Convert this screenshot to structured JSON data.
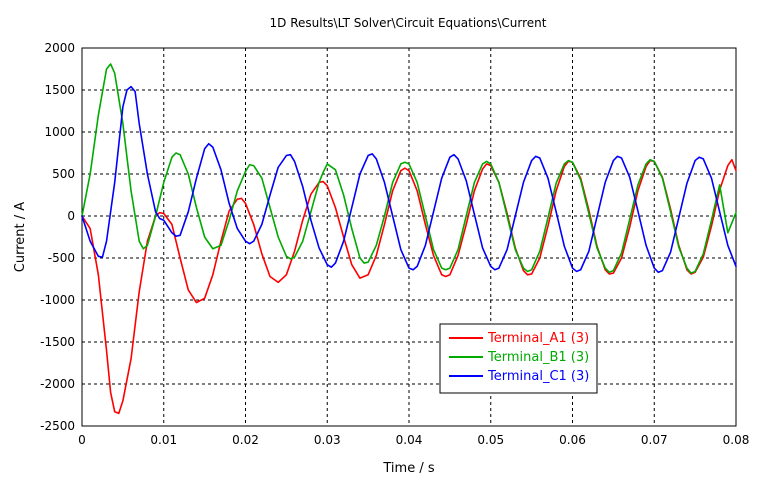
{
  "chart_data": {
    "type": "line",
    "title": "1D Results\\LT Solver\\Circuit Equations\\Current",
    "xlabel": "Time / s",
    "ylabel": "Current / A",
    "xlim": [
      0,
      0.08
    ],
    "ylim": [
      -2500,
      2000
    ],
    "x_ticks": [
      0,
      0.01,
      0.02,
      0.03,
      0.04,
      0.05,
      0.06,
      0.07,
      0.08
    ],
    "x_tick_labels": [
      "0",
      "0.01",
      "0.02",
      "0.03",
      "0.04",
      "0.05",
      "0.06",
      "0.07",
      "0.08"
    ],
    "y_ticks": [
      2000,
      1500,
      1000,
      500,
      0,
      -500,
      -1000,
      -1500,
      -2000,
      -2500
    ],
    "y_tick_labels": [
      "2000",
      "1500",
      "1000",
      "500",
      "0",
      "-500",
      "-1000",
      "-1500",
      "-2000",
      "-2500"
    ],
    "grid": true,
    "grid_style": "dashed",
    "legend_position": "lower-right",
    "series": [
      {
        "name": "Terminal_A1 (3)",
        "color": "#ff0000",
        "points": [
          [
            0,
            0
          ],
          [
            0.001,
            -150
          ],
          [
            0.002,
            -700
          ],
          [
            0.003,
            -1600
          ],
          [
            0.0035,
            -2100
          ],
          [
            0.004,
            -2330
          ],
          [
            0.0045,
            -2350
          ],
          [
            0.005,
            -2200
          ],
          [
            0.006,
            -1700
          ],
          [
            0.007,
            -900
          ],
          [
            0.008,
            -300
          ],
          [
            0.009,
            0
          ],
          [
            0.0095,
            40
          ],
          [
            0.01,
            30
          ],
          [
            0.011,
            -100
          ],
          [
            0.012,
            -500
          ],
          [
            0.013,
            -880
          ],
          [
            0.014,
            -1030
          ],
          [
            0.015,
            -980
          ],
          [
            0.016,
            -700
          ],
          [
            0.017,
            -300
          ],
          [
            0.018,
            60
          ],
          [
            0.019,
            200
          ],
          [
            0.0195,
            210
          ],
          [
            0.02,
            150
          ],
          [
            0.021,
            -100
          ],
          [
            0.022,
            -450
          ],
          [
            0.023,
            -720
          ],
          [
            0.024,
            -790
          ],
          [
            0.025,
            -700
          ],
          [
            0.026,
            -420
          ],
          [
            0.027,
            -50
          ],
          [
            0.028,
            260
          ],
          [
            0.029,
            400
          ],
          [
            0.0295,
            410
          ],
          [
            0.03,
            360
          ],
          [
            0.031,
            100
          ],
          [
            0.032,
            -250
          ],
          [
            0.033,
            -580
          ],
          [
            0.034,
            -740
          ],
          [
            0.035,
            -700
          ],
          [
            0.036,
            -470
          ],
          [
            0.037,
            -100
          ],
          [
            0.038,
            300
          ],
          [
            0.039,
            540
          ],
          [
            0.0395,
            570
          ],
          [
            0.04,
            540
          ],
          [
            0.041,
            300
          ],
          [
            0.042,
            -100
          ],
          [
            0.043,
            -470
          ],
          [
            0.044,
            -700
          ],
          [
            0.0445,
            -720
          ],
          [
            0.045,
            -700
          ],
          [
            0.046,
            -470
          ],
          [
            0.047,
            -100
          ],
          [
            0.048,
            300
          ],
          [
            0.049,
            560
          ],
          [
            0.0495,
            620
          ],
          [
            0.05,
            600
          ],
          [
            0.051,
            400
          ],
          [
            0.052,
            30
          ],
          [
            0.053,
            -380
          ],
          [
            0.054,
            -650
          ],
          [
            0.0545,
            -700
          ],
          [
            0.055,
            -690
          ],
          [
            0.056,
            -500
          ],
          [
            0.057,
            -120
          ],
          [
            0.058,
            300
          ],
          [
            0.059,
            590
          ],
          [
            0.0595,
            650
          ],
          [
            0.06,
            640
          ],
          [
            0.061,
            450
          ],
          [
            0.062,
            70
          ],
          [
            0.063,
            -360
          ],
          [
            0.064,
            -640
          ],
          [
            0.0645,
            -690
          ],
          [
            0.065,
            -680
          ],
          [
            0.066,
            -500
          ],
          [
            0.067,
            -130
          ],
          [
            0.068,
            300
          ],
          [
            0.069,
            590
          ],
          [
            0.0695,
            660
          ],
          [
            0.07,
            650
          ],
          [
            0.071,
            460
          ],
          [
            0.072,
            80
          ],
          [
            0.073,
            -350
          ],
          [
            0.074,
            -640
          ],
          [
            0.0745,
            -690
          ],
          [
            0.075,
            -670
          ],
          [
            0.076,
            -490
          ],
          [
            0.077,
            -120
          ],
          [
            0.078,
            310
          ],
          [
            0.079,
            600
          ],
          [
            0.0795,
            670
          ],
          [
            0.08,
            540
          ]
        ]
      },
      {
        "name": "Terminal_B1 (3)",
        "color": "#00aa00",
        "points": [
          [
            0,
            0
          ],
          [
            0.001,
            500
          ],
          [
            0.002,
            1200
          ],
          [
            0.003,
            1750
          ],
          [
            0.0035,
            1810
          ],
          [
            0.004,
            1700
          ],
          [
            0.005,
            1100
          ],
          [
            0.006,
            300
          ],
          [
            0.007,
            -300
          ],
          [
            0.0075,
            -390
          ],
          [
            0.008,
            -350
          ],
          [
            0.009,
            0
          ],
          [
            0.01,
            400
          ],
          [
            0.011,
            700
          ],
          [
            0.0115,
            750
          ],
          [
            0.012,
            730
          ],
          [
            0.013,
            500
          ],
          [
            0.014,
            100
          ],
          [
            0.015,
            -250
          ],
          [
            0.016,
            -390
          ],
          [
            0.017,
            -350
          ],
          [
            0.018,
            -50
          ],
          [
            0.019,
            300
          ],
          [
            0.02,
            530
          ],
          [
            0.0205,
            610
          ],
          [
            0.021,
            600
          ],
          [
            0.022,
            450
          ],
          [
            0.023,
            100
          ],
          [
            0.024,
            -250
          ],
          [
            0.025,
            -480
          ],
          [
            0.0255,
            -510
          ],
          [
            0.026,
            -490
          ],
          [
            0.027,
            -300
          ],
          [
            0.028,
            50
          ],
          [
            0.029,
            400
          ],
          [
            0.0295,
            520
          ],
          [
            0.03,
            620
          ],
          [
            0.031,
            550
          ],
          [
            0.032,
            250
          ],
          [
            0.033,
            -150
          ],
          [
            0.034,
            -500
          ],
          [
            0.0345,
            -560
          ],
          [
            0.035,
            -550
          ],
          [
            0.036,
            -350
          ],
          [
            0.037,
            0
          ],
          [
            0.038,
            400
          ],
          [
            0.039,
            620
          ],
          [
            0.0395,
            640
          ],
          [
            0.04,
            620
          ],
          [
            0.041,
            400
          ],
          [
            0.042,
            0
          ],
          [
            0.043,
            -400
          ],
          [
            0.044,
            -620
          ],
          [
            0.0445,
            -640
          ],
          [
            0.045,
            -620
          ],
          [
            0.046,
            -400
          ],
          [
            0.047,
            0
          ],
          [
            0.048,
            400
          ],
          [
            0.049,
            620
          ],
          [
            0.0495,
            650
          ],
          [
            0.05,
            620
          ],
          [
            0.051,
            400
          ],
          [
            0.052,
            0
          ],
          [
            0.053,
            -400
          ],
          [
            0.054,
            -620
          ],
          [
            0.0545,
            -660
          ],
          [
            0.055,
            -640
          ],
          [
            0.056,
            -420
          ],
          [
            0.057,
            -20
          ],
          [
            0.058,
            390
          ],
          [
            0.059,
            620
          ],
          [
            0.0595,
            660
          ],
          [
            0.06,
            640
          ],
          [
            0.061,
            430
          ],
          [
            0.062,
            30
          ],
          [
            0.063,
            -380
          ],
          [
            0.064,
            -620
          ],
          [
            0.0645,
            -670
          ],
          [
            0.065,
            -650
          ],
          [
            0.066,
            -440
          ],
          [
            0.067,
            -40
          ],
          [
            0.068,
            370
          ],
          [
            0.069,
            620
          ],
          [
            0.0695,
            670
          ],
          [
            0.07,
            650
          ],
          [
            0.071,
            450
          ],
          [
            0.072,
            50
          ],
          [
            0.073,
            -370
          ],
          [
            0.074,
            -620
          ],
          [
            0.0745,
            -680
          ],
          [
            0.075,
            -660
          ],
          [
            0.076,
            -450
          ],
          [
            0.077,
            -50
          ],
          [
            0.078,
            370
          ],
          [
            0.079,
            -200
          ],
          [
            0.08,
            40
          ]
        ]
      },
      {
        "name": "Terminal_C1 (3)",
        "color": "#0000ff",
        "points": [
          [
            0,
            0
          ],
          [
            0.001,
            -300
          ],
          [
            0.002,
            -480
          ],
          [
            0.0025,
            -490
          ],
          [
            0.003,
            -300
          ],
          [
            0.004,
            400
          ],
          [
            0.005,
            1300
          ],
          [
            0.0055,
            1500
          ],
          [
            0.006,
            1540
          ],
          [
            0.0065,
            1480
          ],
          [
            0.007,
            1100
          ],
          [
            0.008,
            500
          ],
          [
            0.009,
            50
          ],
          [
            0.0095,
            -30
          ],
          [
            0.01,
            -50
          ],
          [
            0.011,
            -200
          ],
          [
            0.0115,
            -240
          ],
          [
            0.012,
            -230
          ],
          [
            0.013,
            50
          ],
          [
            0.014,
            450
          ],
          [
            0.015,
            800
          ],
          [
            0.0155,
            860
          ],
          [
            0.016,
            820
          ],
          [
            0.017,
            550
          ],
          [
            0.018,
            150
          ],
          [
            0.019,
            -150
          ],
          [
            0.02,
            -300
          ],
          [
            0.0205,
            -330
          ],
          [
            0.021,
            -300
          ],
          [
            0.022,
            -100
          ],
          [
            0.023,
            250
          ],
          [
            0.024,
            580
          ],
          [
            0.025,
            720
          ],
          [
            0.0255,
            730
          ],
          [
            0.026,
            650
          ],
          [
            0.027,
            350
          ],
          [
            0.028,
            -50
          ],
          [
            0.029,
            -380
          ],
          [
            0.03,
            -580
          ],
          [
            0.0305,
            -610
          ],
          [
            0.031,
            -560
          ],
          [
            0.032,
            -300
          ],
          [
            0.033,
            100
          ],
          [
            0.034,
            500
          ],
          [
            0.035,
            720
          ],
          [
            0.0355,
            740
          ],
          [
            0.036,
            680
          ],
          [
            0.037,
            400
          ],
          [
            0.038,
            0
          ],
          [
            0.039,
            -400
          ],
          [
            0.04,
            -620
          ],
          [
            0.0405,
            -640
          ],
          [
            0.041,
            -600
          ],
          [
            0.042,
            -350
          ],
          [
            0.043,
            50
          ],
          [
            0.044,
            450
          ],
          [
            0.045,
            700
          ],
          [
            0.0455,
            730
          ],
          [
            0.046,
            680
          ],
          [
            0.047,
            420
          ],
          [
            0.048,
            20
          ],
          [
            0.049,
            -380
          ],
          [
            0.05,
            -600
          ],
          [
            0.0505,
            -640
          ],
          [
            0.051,
            -620
          ],
          [
            0.052,
            -400
          ],
          [
            0.053,
            0
          ],
          [
            0.054,
            400
          ],
          [
            0.055,
            660
          ],
          [
            0.0555,
            710
          ],
          [
            0.056,
            690
          ],
          [
            0.057,
            450
          ],
          [
            0.058,
            50
          ],
          [
            0.059,
            -360
          ],
          [
            0.06,
            -620
          ],
          [
            0.0605,
            -660
          ],
          [
            0.061,
            -640
          ],
          [
            0.062,
            -420
          ],
          [
            0.063,
            -10
          ],
          [
            0.064,
            400
          ],
          [
            0.065,
            660
          ],
          [
            0.0655,
            710
          ],
          [
            0.066,
            690
          ],
          [
            0.067,
            460
          ],
          [
            0.068,
            60
          ],
          [
            0.069,
            -350
          ],
          [
            0.07,
            -620
          ],
          [
            0.0705,
            -670
          ],
          [
            0.071,
            -650
          ],
          [
            0.072,
            -430
          ],
          [
            0.073,
            -20
          ],
          [
            0.074,
            390
          ],
          [
            0.075,
            660
          ],
          [
            0.0755,
            700
          ],
          [
            0.076,
            680
          ],
          [
            0.077,
            450
          ],
          [
            0.078,
            50
          ],
          [
            0.079,
            -350
          ],
          [
            0.08,
            -600
          ]
        ]
      }
    ]
  }
}
